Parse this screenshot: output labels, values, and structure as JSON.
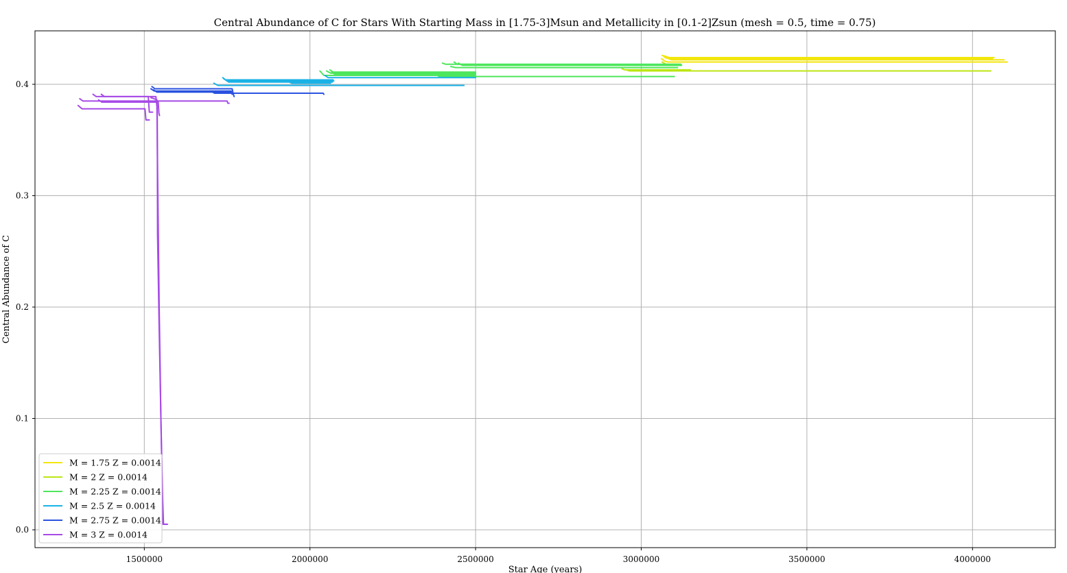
{
  "chart_data": {
    "type": "line",
    "title": "Central Abundance of C for Stars With Starting Mass in [1.75-3]Msun and Metallicity in [0.1-2]Zsun (mesh = 0.5, time = 0.75)",
    "xlabel": "Star Age (years)",
    "ylabel": "Central Abundance of C",
    "xlim": [
      1170000,
      4250000
    ],
    "ylim": [
      -0.016,
      0.448
    ],
    "xticks": [
      1500000,
      2000000,
      2500000,
      3000000,
      3500000,
      4000000
    ],
    "xtick_labels": [
      "1500000",
      "2000000",
      "2500000",
      "3000000",
      "3500000",
      "4000000"
    ],
    "yticks": [
      0.0,
      0.1,
      0.2,
      0.3,
      0.4
    ],
    "ytick_labels": [
      "0.0",
      "0.1",
      "0.2",
      "0.3",
      "0.4"
    ],
    "grid": true,
    "legend_position": "lower-left",
    "series": [
      {
        "name": "M = 1.75 Z = 0.0014",
        "color": "#f2e60d",
        "tracks": [
          [
            [
              3063000,
              0.426
            ],
            [
              3075000,
              0.425
            ],
            [
              3085000,
              0.424
            ],
            [
              3200000,
              0.424
            ],
            [
              4065000,
              0.424
            ]
          ],
          [
            [
              3068000,
              0.425
            ],
            [
              3080000,
              0.424
            ],
            [
              3090000,
              0.423
            ],
            [
              3300000,
              0.423
            ],
            [
              4060000,
              0.423
            ]
          ],
          [
            [
              3072000,
              0.424
            ],
            [
              3082000,
              0.423
            ],
            [
              3092000,
              0.422
            ],
            [
              4095000,
              0.422
            ]
          ],
          [
            [
              3061000,
              0.423
            ],
            [
              3070000,
              0.421
            ],
            [
              3080000,
              0.42
            ],
            [
              4105000,
              0.42
            ]
          ]
        ]
      },
      {
        "name": "M = 2 Z = 0.0014",
        "color": "#bce613",
        "tracks": [
          [
            [
              2942000,
              0.414
            ],
            [
              2950000,
              0.413
            ],
            [
              3148000,
              0.413
            ]
          ],
          [
            [
              2955000,
              0.413
            ],
            [
              2965000,
              0.412
            ],
            [
              4055000,
              0.412
            ]
          ],
          [
            [
              3063000,
              0.42
            ],
            [
              3075000,
              0.418
            ],
            [
              3120000,
              0.418
            ]
          ],
          [
            [
              3068000,
              0.419
            ],
            [
              3078000,
              0.417
            ],
            [
              3118000,
              0.417
            ]
          ]
        ]
      },
      {
        "name": "M = 2.25 Z = 0.0014",
        "color": "#4de65c",
        "tracks": [
          [
            [
              2400000,
              0.419
            ],
            [
              2410000,
              0.418
            ],
            [
              3120000,
              0.418
            ]
          ],
          [
            [
              2435000,
              0.42
            ],
            [
              2445000,
              0.418
            ],
            [
              2500000,
              0.418
            ]
          ],
          [
            [
              2448000,
              0.419
            ],
            [
              2460000,
              0.417
            ],
            [
              3122000,
              0.417
            ]
          ],
          [
            [
              2425000,
              0.416
            ],
            [
              2440000,
              0.415
            ],
            [
              3110000,
              0.415
            ]
          ],
          [
            [
              2060000,
              0.413
            ],
            [
              2070000,
              0.411
            ],
            [
              2500000,
              0.411
            ]
          ],
          [
            [
              2050000,
              0.412
            ],
            [
              2062000,
              0.41
            ],
            [
              2500000,
              0.41
            ]
          ],
          [
            [
              2065000,
              0.411
            ],
            [
              2075000,
              0.409
            ],
            [
              2500000,
              0.409
            ]
          ],
          [
            [
              2380000,
              0.409
            ],
            [
              2390000,
              0.407
            ],
            [
              3100000,
              0.407
            ]
          ],
          [
            [
              2030000,
              0.412
            ],
            [
              2042000,
              0.408
            ],
            [
              2500000,
              0.408
            ]
          ]
        ]
      },
      {
        "name": "M = 2.5 Z = 0.0014",
        "color": "#1ab2e6",
        "tracks": [
          [
            [
              1737000,
              0.406
            ],
            [
              1745000,
              0.404
            ],
            [
              2070000,
              0.404
            ]
          ],
          [
            [
              1740000,
              0.405
            ],
            [
              1750000,
              0.403
            ],
            [
              2072000,
              0.403
            ]
          ],
          [
            [
              1745000,
              0.404
            ],
            [
              1755000,
              0.402
            ],
            [
              2068000,
              0.402
            ]
          ],
          [
            [
              1930000,
              0.403
            ],
            [
              1945000,
              0.401
            ],
            [
              2062000,
              0.401
            ]
          ],
          [
            [
              1710000,
              0.401
            ],
            [
              1722000,
              0.399
            ],
            [
              2465000,
              0.399
            ]
          ],
          [
            [
              2045000,
              0.408
            ],
            [
              2055000,
              0.406
            ],
            [
              2500000,
              0.406
            ]
          ]
        ]
      },
      {
        "name": "M = 2.75 Z = 0.0014",
        "color": "#2a52e0",
        "tracks": [
          [
            [
              1523000,
              0.398
            ],
            [
              1532000,
              0.396
            ],
            [
              1765000,
              0.396
            ],
            [
              1768000,
              0.392
            ],
            [
              1771000,
              0.389
            ]
          ],
          [
            [
              1520000,
              0.396
            ],
            [
              1530000,
              0.394
            ],
            [
              1762000,
              0.394
            ],
            [
              1765000,
              0.391
            ]
          ],
          [
            [
              1528000,
              0.395
            ],
            [
              1538000,
              0.393
            ],
            [
              1760000,
              0.393
            ]
          ],
          [
            [
              1700000,
              0.394
            ],
            [
              1712000,
              0.392
            ],
            [
              2040000,
              0.392
            ],
            [
              2042000,
              0.391
            ]
          ]
        ]
      },
      {
        "name": "M = 3 Z = 0.0014",
        "color": "#a64ae6",
        "tracks": [
          [
            [
              1305000,
              0.387
            ],
            [
              1315000,
              0.385
            ],
            [
              1750000,
              0.385
            ],
            [
              1752000,
              0.383
            ],
            [
              1756000,
              0.383
            ]
          ],
          [
            [
              1300000,
              0.381
            ],
            [
              1312000,
              0.378
            ],
            [
              1502000,
              0.378
            ],
            [
              1505000,
              0.368
            ],
            [
              1515000,
              0.368
            ]
          ],
          [
            [
              1345000,
              0.391
            ],
            [
              1355000,
              0.389
            ],
            [
              1512000,
              0.389
            ],
            [
              1515000,
              0.375
            ],
            [
              1525000,
              0.375
            ]
          ],
          [
            [
              1370000,
              0.391
            ],
            [
              1380000,
              0.389
            ],
            [
              1535000,
              0.389
            ],
            [
              1538000,
              0.38
            ],
            [
              1541000,
              0.3
            ],
            [
              1545000,
              0.2
            ],
            [
              1550000,
              0.1
            ],
            [
              1555000,
              0.03
            ],
            [
              1558000,
              0.005
            ],
            [
              1570000,
              0.005
            ]
          ],
          [
            [
              1362000,
              0.386
            ],
            [
              1372000,
              0.384
            ],
            [
              1542000,
              0.384
            ],
            [
              1544000,
              0.374
            ],
            [
              1546000,
              0.372
            ]
          ],
          [
            [
              1520000,
              0.388
            ],
            [
              1530000,
              0.387
            ],
            [
              1538000,
              0.386
            ],
            [
              1539000,
              0.37
            ],
            [
              1540000,
              0.265
            ],
            [
              1545000,
              0.18
            ],
            [
              1550000,
              0.1
            ],
            [
              1556000,
              0.005
            ],
            [
              1568000,
              0.005
            ]
          ]
        ]
      }
    ]
  }
}
